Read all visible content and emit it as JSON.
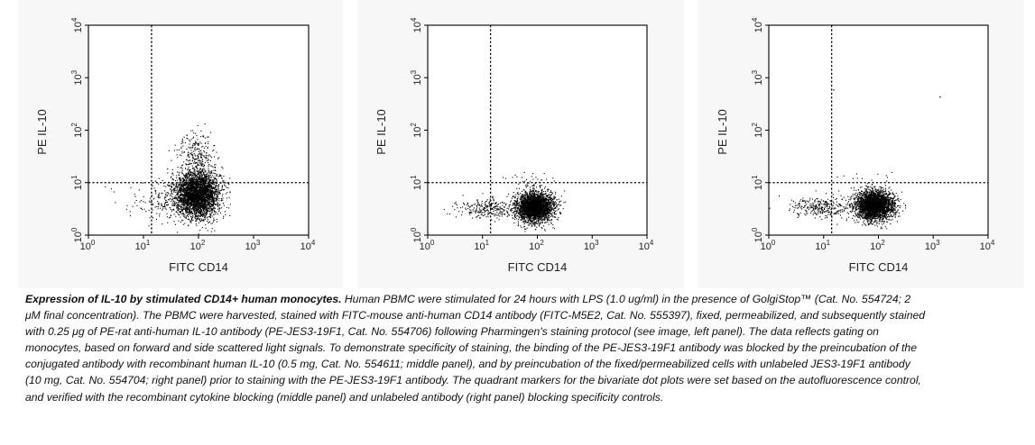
{
  "chart_data": [
    {
      "type": "scatter",
      "title": "",
      "xlabel": "FITC CD14",
      "ylabel": "PE IL-10",
      "xscale": "log",
      "yscale": "log",
      "xlim": [
        1,
        10000
      ],
      "ylim": [
        1,
        10000
      ],
      "xticks": [
        "10^0",
        "10^1",
        "10^2",
        "10^3",
        "10^4"
      ],
      "yticks": [
        "10^0",
        "10^1",
        "10^2",
        "10^3",
        "10^4"
      ],
      "grid": false,
      "quadrant_markers": {
        "x": 14,
        "y": 10
      },
      "populations": [
        {
          "center": [
            95,
            6
          ],
          "spread_decades": [
            0.2,
            0.22
          ],
          "count": 3300
        },
        {
          "center": [
            30,
            4.5
          ],
          "spread_decades": [
            0.4,
            0.18
          ],
          "count": 200
        },
        {
          "center": [
            90,
            35
          ],
          "spread_decades": [
            0.18,
            0.2
          ],
          "count": 260
        }
      ]
    },
    {
      "type": "scatter",
      "title": "",
      "xlabel": "FITC CD14",
      "ylabel": "PE IL-10",
      "xscale": "log",
      "yscale": "log",
      "xlim": [
        1,
        10000
      ],
      "ylim": [
        1,
        10000
      ],
      "xticks": [
        "10^0",
        "10^1",
        "10^2",
        "10^3",
        "10^4"
      ],
      "yticks": [
        "10^0",
        "10^1",
        "10^2",
        "10^3",
        "10^4"
      ],
      "grid": false,
      "quadrant_markers": {
        "x": 14,
        "y": 10
      },
      "populations": [
        {
          "center": [
            90,
            3.5
          ],
          "spread_decades": [
            0.17,
            0.14
          ],
          "count": 2900
        },
        {
          "center": [
            12,
            3.3
          ],
          "spread_decades": [
            0.28,
            0.1
          ],
          "count": 280
        },
        {
          "center": [
            70,
            13
          ],
          "spread_decades": [
            0.2,
            0.1
          ],
          "count": 25
        }
      ]
    },
    {
      "type": "scatter",
      "title": "",
      "xlabel": "FITC CD14",
      "ylabel": "PE IL-10",
      "xscale": "log",
      "yscale": "log",
      "xlim": [
        1,
        10000
      ],
      "ylim": [
        1,
        10000
      ],
      "xticks": [
        "10^0",
        "10^1",
        "10^2",
        "10^3",
        "10^4"
      ],
      "yticks": [
        "10^0",
        "10^1",
        "10^2",
        "10^3",
        "10^4"
      ],
      "grid": false,
      "quadrant_markers": {
        "x": 14,
        "y": 10
      },
      "populations": [
        {
          "center": [
            85,
            3.8
          ],
          "spread_decades": [
            0.17,
            0.14
          ],
          "count": 2900
        },
        {
          "center": [
            9,
            3.5
          ],
          "spread_decades": [
            0.28,
            0.1
          ],
          "count": 300
        },
        {
          "center": [
            60,
            13
          ],
          "spread_decades": [
            0.3,
            0.08
          ],
          "count": 12
        }
      ],
      "outliers": [
        [
          15,
          600
        ],
        [
          1300,
          440
        ]
      ]
    }
  ],
  "caption": {
    "title": "Expression of IL-10 by stimulated CD14+ human monocytes.",
    "body": " Human PBMC were stimulated for 24 hours with LPS (1.0 ug/ml) in the presence of GolgiStop™ (Cat. No. 554724; 2 μM final concentration). The PBMC were harvested, stained with FITC-mouse anti-human CD14 antibody (FITC-M5E2, Cat. No. 555397), fixed, permeabilized, and subsequently stained with 0.25 μg of PE-rat anti-human IL-10 antibody (PE-JES3-19F1, Cat. No. 554706) following Pharmingen's staining protocol (see image, left panel). The data reflects gating on monocytes, based on forward and side scattered light signals. To demonstrate specificity of staining, the binding of the PE-JES3-19F1 antibody was blocked by the preincubation of the conjugated antibody with recombinant human IL-10 (0.5 mg, Cat. No. 554611; middle panel), and by preincubation of the fixed/permeabilized cells with unlabeled JES3-19F1 antibody (10 mg, Cat. No. 554704; right panel) prior to staining with the PE-JES3-19F1 antibody. The quadrant markers for the bivariate dot plots were set based on the autofluorescence control, and verified with the recombinant cytokine blocking (middle panel) and unlabeled antibody (right panel) blocking specificity controls."
  }
}
